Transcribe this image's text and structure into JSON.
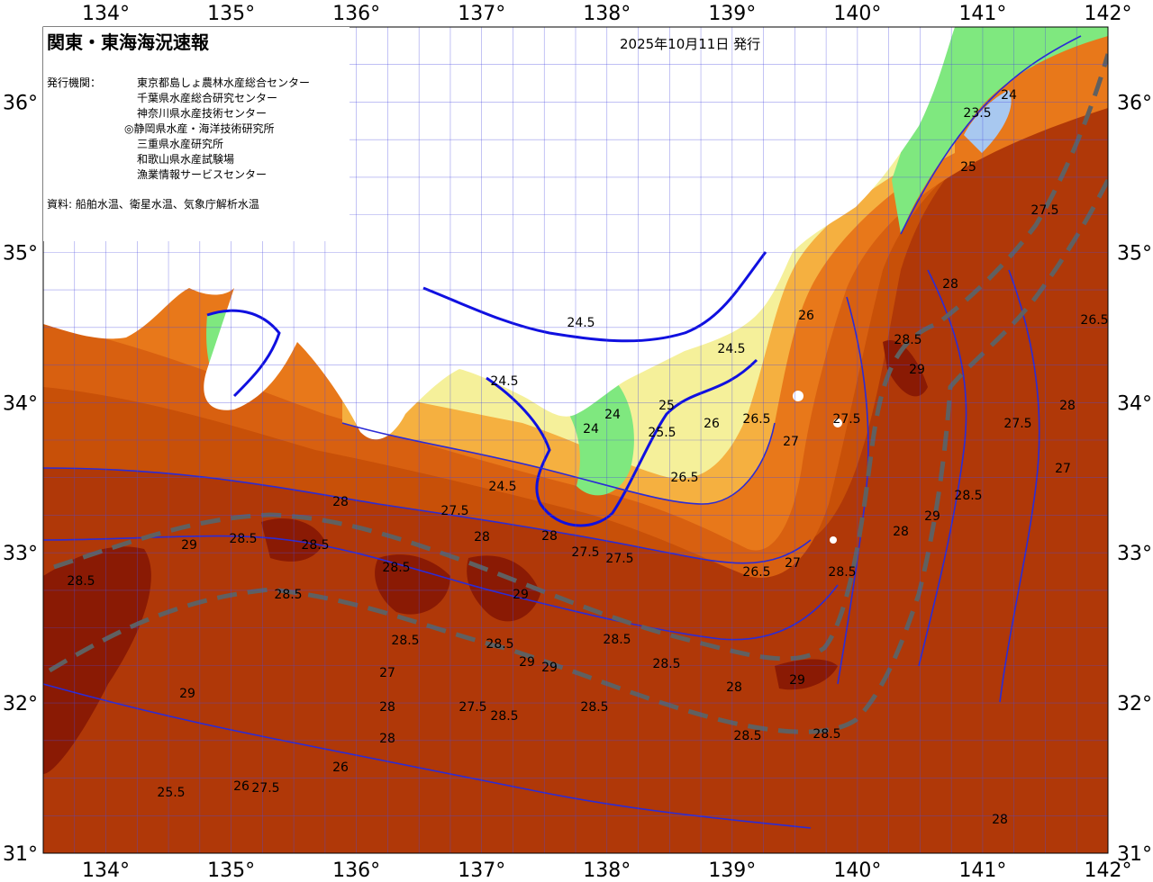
{
  "map": {
    "title": "関東・東海海況速報",
    "issue_date": "2025年10月11日 発行",
    "issuer_label": "発行機関：",
    "issuers": [
      "東京都島しょ農林水産総合センター",
      "千葉県水産総合研究センター",
      "神奈川県水産技術センター",
      "◎静岡県水産・海洋技術研究所",
      "三重県水産研究所",
      "和歌山県水産試験場",
      "漁業情報サービスセンター"
    ],
    "source_text": "資料: 船舶水温、衛星水温、気象庁解析水温",
    "lon_labels": [
      "134°",
      "135°",
      "136°",
      "137°",
      "138°",
      "139°",
      "140°",
      "141°",
      "142°"
    ],
    "lat_labels": [
      "36°",
      "35°",
      "34°",
      "33°",
      "32°",
      "31°"
    ],
    "colors": {
      "land": "#ffffff",
      "t_23_5": "#a8c8f0",
      "t_24": "#7fe87f",
      "t_24_5": "#b8f08a",
      "t_25": "#f5f09a",
      "t_25_5": "#f0d060",
      "t_26": "#f5b040",
      "t_26_5": "#f09a2a",
      "t_27": "#e8781a",
      "t_27_5": "#d86010",
      "t_28": "#c85008",
      "t_28_5": "#b03808",
      "t_29": "#8a1a04",
      "contour": "#2b2bd6",
      "contour_bold": "#1010e0",
      "kuroshio_axis": "#606060",
      "grid": "#4a4ae0"
    },
    "contour_labels": [
      {
        "text": "24.5"
      },
      {
        "text": "24.5"
      },
      {
        "text": "24.5"
      },
      {
        "text": "24.5"
      },
      {
        "text": "24"
      },
      {
        "text": "24"
      },
      {
        "text": "25"
      },
      {
        "text": "25.5"
      },
      {
        "text": "26"
      },
      {
        "text": "26.5"
      },
      {
        "text": "26.5"
      },
      {
        "text": "27"
      },
      {
        "text": "27.5"
      },
      {
        "text": "27.5"
      },
      {
        "text": "28"
      },
      {
        "text": "28"
      },
      {
        "text": "28"
      },
      {
        "text": "28.5"
      },
      {
        "text": "28.5"
      },
      {
        "text": "28.5"
      },
      {
        "text": "28.5"
      },
      {
        "text": "29"
      },
      {
        "text": "29"
      },
      {
        "text": "29"
      },
      {
        "text": "29"
      },
      {
        "text": "28.5"
      },
      {
        "text": "28.5"
      },
      {
        "text": "28.5"
      },
      {
        "text": "28"
      },
      {
        "text": "27.5"
      },
      {
        "text": "27.5"
      },
      {
        "text": "27"
      },
      {
        "text": "26.5"
      },
      {
        "text": "26"
      },
      {
        "text": "23.5"
      },
      {
        "text": "24"
      },
      {
        "text": "25"
      },
      {
        "text": "27.5"
      },
      {
        "text": "28"
      },
      {
        "text": "28.5"
      },
      {
        "text": "29"
      },
      {
        "text": "28"
      },
      {
        "text": "27.5"
      },
      {
        "text": "27"
      },
      {
        "text": "26.5"
      },
      {
        "text": "28.5"
      },
      {
        "text": "28"
      },
      {
        "text": "29"
      },
      {
        "text": "28.5"
      },
      {
        "text": "28.5"
      },
      {
        "text": "28"
      },
      {
        "text": "29"
      },
      {
        "text": "28.5"
      },
      {
        "text": "28.5"
      },
      {
        "text": "28.5"
      },
      {
        "text": "29"
      },
      {
        "text": "28.5"
      },
      {
        "text": "28.5"
      },
      {
        "text": "28"
      },
      {
        "text": "27.5"
      },
      {
        "text": "26"
      },
      {
        "text": "25.5"
      },
      {
        "text": "26"
      },
      {
        "text": "27"
      },
      {
        "text": "27.5"
      },
      {
        "text": "28"
      }
    ]
  }
}
